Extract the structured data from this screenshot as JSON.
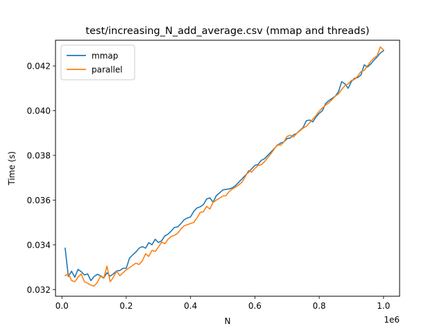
{
  "chart_data": {
    "type": "line",
    "title": "test/increasing_N_add_average.csv (mmap and threads)",
    "xlabel": "N",
    "ylabel": "Time (s)",
    "x_offset_label": "1e6",
    "x_scale": 1000000,
    "xlim": [
      -20000,
      1050000
    ],
    "ylim": [
      0.0317,
      0.04315
    ],
    "x_ticks": [
      0,
      200000,
      400000,
      600000,
      800000,
      1000000
    ],
    "x_tick_labels": [
      "0.0",
      "0.2",
      "0.4",
      "0.6",
      "0.8",
      "1.0"
    ],
    "y_ticks": [
      0.032,
      0.034,
      0.036,
      0.038,
      0.04,
      0.042
    ],
    "y_tick_labels": [
      "0.032",
      "0.034",
      "0.036",
      "0.038",
      "0.040",
      "0.042"
    ],
    "grid": false,
    "legend_position": "upper left",
    "x": [
      10000,
      20000,
      30000,
      40000,
      50000,
      60000,
      70000,
      80000,
      90000,
      100000,
      110000,
      120000,
      130000,
      140000,
      150000,
      160000,
      170000,
      180000,
      190000,
      200000,
      210000,
      220000,
      230000,
      240000,
      250000,
      260000,
      270000,
      280000,
      290000,
      300000,
      310000,
      320000,
      330000,
      340000,
      350000,
      360000,
      370000,
      380000,
      390000,
      400000,
      410000,
      420000,
      430000,
      440000,
      450000,
      460000,
      470000,
      480000,
      490000,
      500000,
      510000,
      520000,
      530000,
      540000,
      550000,
      560000,
      570000,
      580000,
      590000,
      600000,
      610000,
      620000,
      630000,
      640000,
      650000,
      660000,
      670000,
      680000,
      690000,
      700000,
      710000,
      720000,
      730000,
      740000,
      750000,
      760000,
      770000,
      780000,
      790000,
      800000,
      810000,
      820000,
      830000,
      840000,
      850000,
      860000,
      870000,
      880000,
      890000,
      900000,
      910000,
      920000,
      930000,
      940000,
      950000,
      960000,
      970000,
      980000,
      990000,
      1000000
    ],
    "series": [
      {
        "name": "mmap",
        "color": "#1f77b4",
        "values": [
          0.03385,
          0.03258,
          0.03282,
          0.03255,
          0.0329,
          0.0328,
          0.03265,
          0.0327,
          0.0324,
          0.03258,
          0.03268,
          0.03262,
          0.03252,
          0.03275,
          0.0326,
          0.0327,
          0.03283,
          0.03285,
          0.03295,
          0.03295,
          0.0334,
          0.03355,
          0.03368,
          0.03385,
          0.03392,
          0.03385,
          0.0341,
          0.034,
          0.03425,
          0.0341,
          0.03418,
          0.0344,
          0.03448,
          0.03462,
          0.03478,
          0.0348,
          0.03495,
          0.03512,
          0.0352,
          0.03525,
          0.0355,
          0.03565,
          0.0357,
          0.0358,
          0.03605,
          0.0361,
          0.0359,
          0.0362,
          0.03632,
          0.03645,
          0.03648,
          0.0365,
          0.03655,
          0.03665,
          0.0368,
          0.03695,
          0.0371,
          0.03725,
          0.0374,
          0.03755,
          0.0376,
          0.03778,
          0.03785,
          0.038,
          0.03815,
          0.0383,
          0.03845,
          0.03855,
          0.0386,
          0.03875,
          0.03878,
          0.03892,
          0.03898,
          0.03912,
          0.03925,
          0.03955,
          0.03958,
          0.0395,
          0.03972,
          0.03988,
          0.04,
          0.04032,
          0.04045,
          0.04055,
          0.04065,
          0.04085,
          0.0413,
          0.0412,
          0.041,
          0.0413,
          0.04145,
          0.04148,
          0.0416,
          0.04205,
          0.04195,
          0.04208,
          0.04225,
          0.0424,
          0.04258,
          0.04268
        ]
      },
      {
        "name": "parallel",
        "color": "#ff7f0e",
        "values": [
          0.03262,
          0.03272,
          0.0324,
          0.03235,
          0.03255,
          0.0327,
          0.03235,
          0.03228,
          0.0322,
          0.03215,
          0.03232,
          0.0326,
          0.0325,
          0.03305,
          0.03235,
          0.03255,
          0.03282,
          0.03262,
          0.03275,
          0.03288,
          0.03298,
          0.03308,
          0.03318,
          0.03312,
          0.03328,
          0.0336,
          0.03348,
          0.03375,
          0.0337,
          0.0339,
          0.03412,
          0.03405,
          0.03425,
          0.03438,
          0.03442,
          0.03452,
          0.0347,
          0.03485,
          0.0349,
          0.03495,
          0.035,
          0.0352,
          0.03545,
          0.03548,
          0.03572,
          0.0356,
          0.0359,
          0.036,
          0.03608,
          0.03618,
          0.0362,
          0.03638,
          0.0365,
          0.03658,
          0.03668,
          0.0368,
          0.03705,
          0.03732,
          0.03725,
          0.03742,
          0.03755,
          0.03758,
          0.03772,
          0.0379,
          0.03808,
          0.03828,
          0.03848,
          0.03845,
          0.0386,
          0.03885,
          0.0389,
          0.03882,
          0.03898,
          0.0391,
          0.03922,
          0.0393,
          0.03945,
          0.03962,
          0.03978,
          0.03998,
          0.04012,
          0.04025,
          0.04035,
          0.0405,
          0.04065,
          0.04075,
          0.04095,
          0.04112,
          0.0412,
          0.04135,
          0.0414,
          0.04155,
          0.04175,
          0.0418,
          0.042,
          0.0422,
          0.04235,
          0.04245,
          0.04285,
          0.04272
        ]
      }
    ]
  }
}
